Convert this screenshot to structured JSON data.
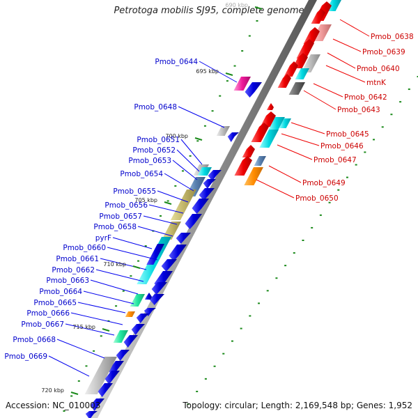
{
  "title": "Petrotoga mobilis SJ95, complete genome",
  "accession": "Accession: NC_010003",
  "topology": "Topology: circular; Length: 2,169,548 bp; Genes: 1,952",
  "colors": {
    "forward": "#0000ee",
    "reverse": "#ee0000",
    "label_forward": "#0000cc",
    "label_reverse": "#cc0000",
    "backbone": "#888888",
    "tick": "#1a8a1a"
  },
  "ticks": [
    "690 kbp",
    "695 kbp",
    "700 kbp",
    "705 kbp",
    "710 kbp",
    "715 kbp",
    "720 kbp"
  ],
  "forward_genes": [
    "Pmob_0644",
    "Pmob_0648",
    "Pmob_0651",
    "Pmob_0652",
    "Pmob_0653",
    "Pmob_0654",
    "Pmob_0655",
    "Pmob_0656",
    "Pmob_0657",
    "Pmob_0658",
    "pyrF",
    "Pmob_0660",
    "Pmob_0661",
    "Pmob_0662",
    "Pmob_0663",
    "Pmob_0664",
    "Pmob_0665",
    "Pmob_0666",
    "Pmob_0667",
    "Pmob_0668",
    "Pmob_0669"
  ],
  "reverse_genes": [
    "Pmob_0638",
    "Pmob_0639",
    "Pmob_0640",
    "mtnK",
    "Pmob_0642",
    "Pmob_0643",
    "Pmob_0645",
    "Pmob_0646",
    "Pmob_0647",
    "Pmob_0649",
    "Pmob_0650"
  ]
}
